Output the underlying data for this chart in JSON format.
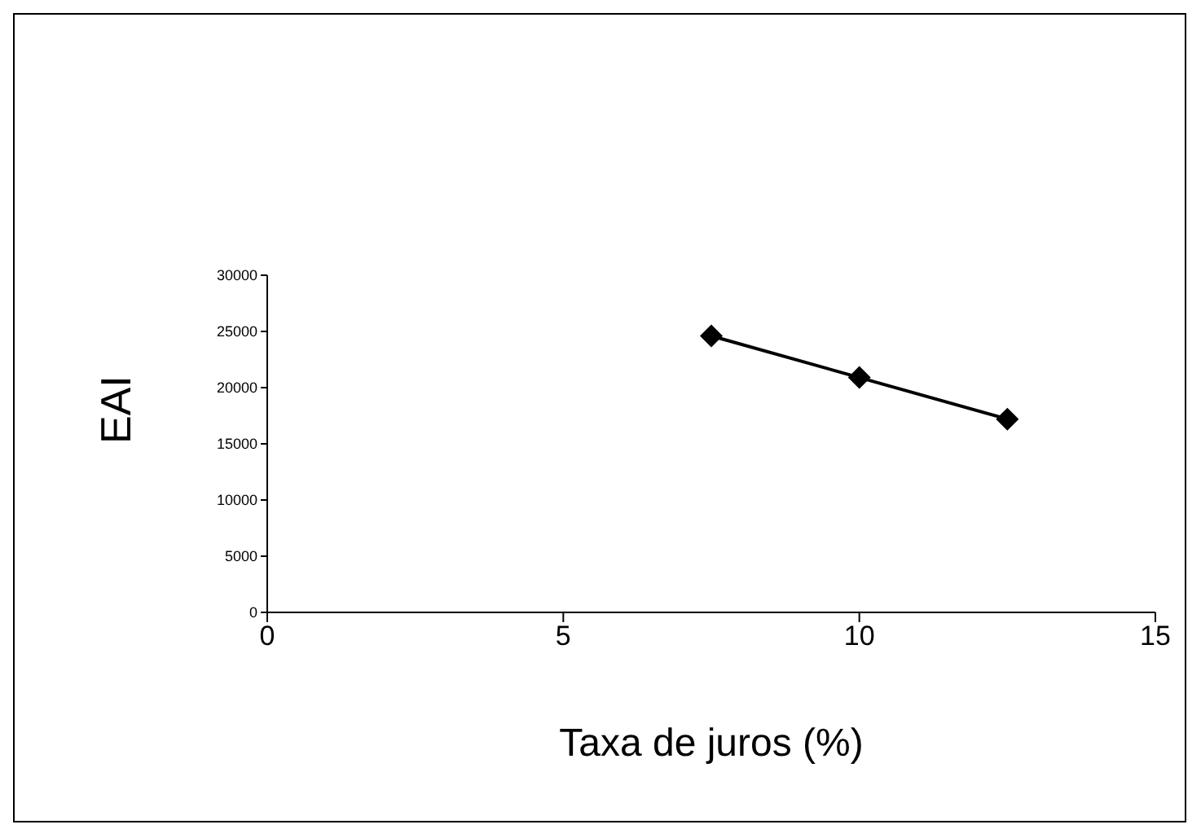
{
  "chart_data": {
    "type": "line",
    "xlabel": "Taxa de juros (%)",
    "ylabel": "EAI",
    "x": [
      7.5,
      10,
      12.5
    ],
    "series": [
      {
        "color": "#000000",
        "values": [
          24600,
          20900,
          17200
        ]
      }
    ],
    "xlim": [
      0,
      15
    ],
    "xticks": [
      0,
      5,
      10,
      15
    ],
    "ylim": [
      0,
      30000
    ],
    "yticks": [
      0,
      5000,
      10000,
      15000,
      20000,
      25000,
      30000
    ],
    "grid": false,
    "legend": false,
    "marker": "diamond",
    "line_style": "solid"
  }
}
